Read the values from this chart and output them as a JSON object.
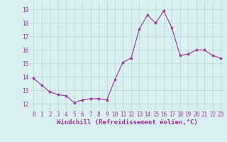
{
  "x": [
    0,
    1,
    2,
    3,
    4,
    5,
    6,
    7,
    8,
    9,
    10,
    11,
    12,
    13,
    14,
    15,
    16,
    17,
    18,
    19,
    20,
    21,
    22,
    23
  ],
  "y": [
    13.9,
    13.4,
    12.9,
    12.7,
    12.6,
    12.1,
    12.3,
    12.4,
    12.4,
    12.3,
    13.8,
    15.1,
    15.4,
    17.55,
    18.6,
    18.0,
    18.9,
    17.65,
    15.6,
    15.7,
    16.0,
    16.0,
    15.6,
    15.4
  ],
  "line_color": "#9b30a0",
  "marker": "*",
  "marker_size": 3,
  "bg_color": "#d8f0f0",
  "grid_color": "#b8d4d4",
  "xlabel": "Windchill (Refroidissement éolien,°C)",
  "xlabel_color": "#9b30a0",
  "xlabel_fontsize": 6.5,
  "yticks": [
    12,
    13,
    14,
    15,
    16,
    17,
    18,
    19
  ],
  "ylim": [
    11.5,
    19.6
  ],
  "xlim": [
    -0.5,
    23.5
  ],
  "tick_color": "#9b30a0",
  "tick_fontsize": 5.5,
  "grid_lw": 0.5,
  "line_width": 0.8
}
